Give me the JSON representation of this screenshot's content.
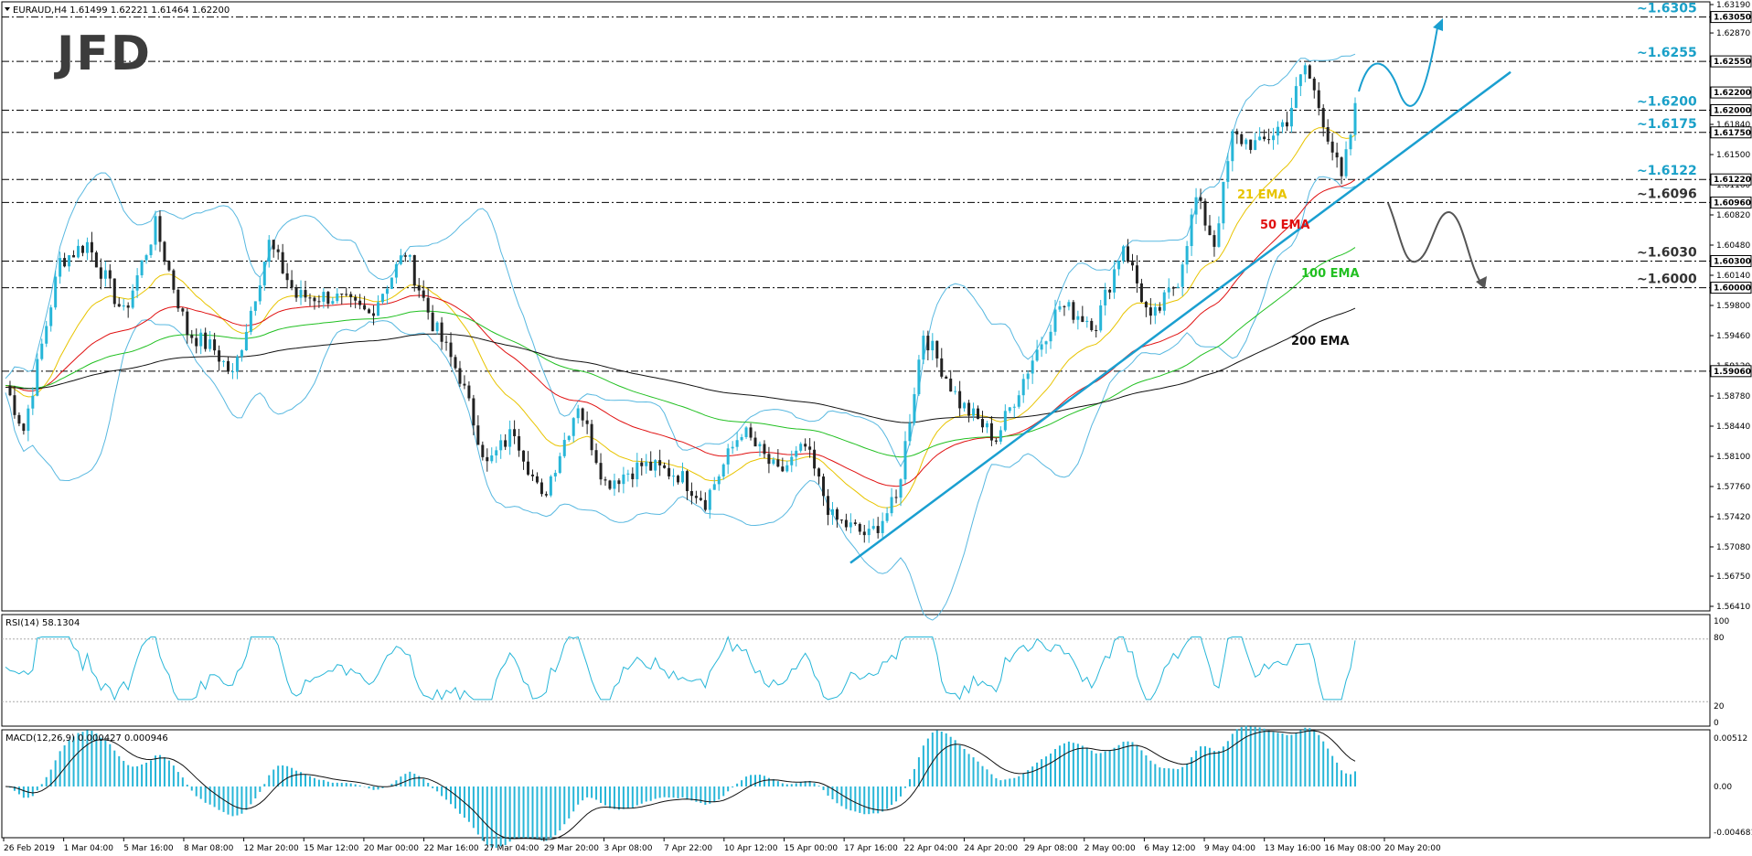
{
  "header": {
    "symbol_label": "EURAUD,H4  1.61499 1.62221 1.61464 1.62200",
    "logo_text": "JFD"
  },
  "price_axis_ticks": [
    "1.63190",
    "1.62870",
    "1.62550",
    "1.62200",
    "1.61840",
    "1.61500",
    "1.61160",
    "1.60820",
    "1.60480",
    "1.60140",
    "1.59800",
    "1.59460",
    "1.59120",
    "1.58780",
    "1.58440",
    "1.58100",
    "1.57760",
    "1.57420",
    "1.57080",
    "1.56750",
    "1.56410"
  ],
  "price_axis_ticks_values": [
    1.6319,
    1.6287,
    1.6255,
    1.622,
    1.6184,
    1.615,
    1.6116,
    1.6082,
    1.6048,
    1.6014,
    1.598,
    1.5946,
    1.5912,
    1.5878,
    1.5844,
    1.581,
    1.5776,
    1.5742,
    1.5708,
    1.5675,
    1.5641
  ],
  "horizontal_levels": [
    {
      "value": 1.6305,
      "box": "1.63050",
      "label": "~1.6305",
      "color": "#1aa0c8"
    },
    {
      "value": 1.6255,
      "box": "1.62550",
      "label": "~1.6255",
      "color": "#1aa0c8"
    },
    {
      "value": 1.62,
      "box": "1.62000",
      "label": "~1.6200",
      "color": "#1aa0c8"
    },
    {
      "value": 1.6175,
      "box": "1.61750",
      "label": "~1.6175",
      "color": "#1aa0c8"
    },
    {
      "value": 1.6122,
      "box": "1.61220",
      "label": "~1.6122",
      "color": "#1aa0c8"
    },
    {
      "value": 1.6096,
      "box": "1.60960",
      "label": "~1.6096",
      "color": "#333333"
    },
    {
      "value": 1.603,
      "box": "1.60300",
      "label": "~1.6030",
      "color": "#333333"
    },
    {
      "value": 1.6,
      "box": "1.60000",
      "label": "~1.6000",
      "color": "#333333"
    },
    {
      "value": 1.5906,
      "box": "1.59060",
      "label": "",
      "color": "#333333"
    }
  ],
  "current_price_box": "1.62200",
  "ema_labels": [
    {
      "text": "21 EMA",
      "color": "#e8c400"
    },
    {
      "text": "50 EMA",
      "color": "#e01010"
    },
    {
      "text": "100 EMA",
      "color": "#22c022"
    },
    {
      "text": "200 EMA",
      "color": "#111111"
    }
  ],
  "x_axis_labels": [
    "26 Feb 2019",
    "1 Mar 04:00",
    "5 Mar 16:00",
    "8 Mar 08:00",
    "12 Mar 20:00",
    "15 Mar 12:00",
    "20 Mar 00:00",
    "22 Mar 16:00",
    "27 Mar 04:00",
    "29 Mar 20:00",
    "3 Apr 08:00",
    "7 Apr 22:00",
    "10 Apr 12:00",
    "15 Apr 00:00",
    "17 Apr 16:00",
    "22 Apr 04:00",
    "24 Apr 20:00",
    "29 Apr 08:00",
    "2 May 00:00",
    "6 May 12:00",
    "9 May 04:00",
    "13 May 16:00",
    "16 May 08:00",
    "20 May 20:00"
  ],
  "rsi": {
    "label": "RSI(14) 58.1304",
    "levels": [
      "100",
      "80",
      "20",
      "0"
    ]
  },
  "macd": {
    "label": "MACD(12,26,9) 0.000427 0.000946",
    "levels": [
      "0.00512",
      "0.00",
      "-0.004681"
    ]
  },
  "colors": {
    "bull": "#27b6d8",
    "bear": "#222222",
    "rsi": "#27b6d8",
    "macd_hist": "#27b6d8",
    "signal": "#111111",
    "trend": "#1a9fd0",
    "bands": "#58b8e0"
  },
  "chart_data": {
    "type": "line",
    "title": "EURAUD,H4",
    "series": [
      {
        "name": "EURAUD H4 (approx close)",
        "x": [
          "26 Feb 2019",
          "1 Mar 04:00",
          "5 Mar 16:00",
          "8 Mar 08:00",
          "12 Mar 20:00",
          "15 Mar 12:00",
          "20 Mar 00:00",
          "22 Mar 16:00",
          "27 Mar 04:00",
          "29 Mar 20:00",
          "3 Apr 08:00",
          "7 Apr 22:00",
          "10 Apr 12:00",
          "15 Apr 00:00",
          "17 Apr 16:00",
          "22 Apr 04:00",
          "24 Apr 20:00",
          "29 Apr 08:00",
          "2 May 00:00",
          "6 May 12:00",
          "9 May 04:00",
          "13 May 16:00",
          "16 May 08:00",
          "20 May 20:00"
        ],
        "values": [
          1.589,
          1.603,
          1.608,
          1.593,
          1.6,
          1.599,
          1.601,
          1.596,
          1.581,
          1.576,
          1.579,
          1.58,
          1.578,
          1.577,
          1.571,
          1.58,
          1.587,
          1.583,
          1.599,
          1.598,
          1.605,
          1.619,
          1.625,
          1.622
        ]
      },
      {
        "name": "21 EMA",
        "values": [
          1.59,
          1.599,
          1.603,
          1.598,
          1.599,
          1.5985,
          1.5995,
          1.596,
          1.586,
          1.58,
          1.579,
          1.579,
          1.579,
          1.578,
          1.574,
          1.579,
          1.586,
          1.582,
          1.594,
          1.598,
          1.603,
          1.615,
          1.621,
          1.617
        ]
      },
      {
        "name": "50 EMA",
        "values": [
          1.59,
          1.595,
          1.599,
          1.598,
          1.5975,
          1.5975,
          1.5985,
          1.597,
          1.59,
          1.585,
          1.582,
          1.581,
          1.58,
          1.579,
          1.577,
          1.579,
          1.582,
          1.582,
          1.589,
          1.594,
          1.599,
          1.607,
          1.613,
          1.613
        ]
      },
      {
        "name": "100 EMA",
        "values": [
          1.591,
          1.593,
          1.596,
          1.596,
          1.596,
          1.5965,
          1.597,
          1.5965,
          1.593,
          1.59,
          1.588,
          1.586,
          1.585,
          1.584,
          1.582,
          1.5815,
          1.582,
          1.582,
          1.586,
          1.59,
          1.594,
          1.599,
          1.604,
          1.606
        ]
      },
      {
        "name": "200 EMA",
        "values": [
          1.59,
          1.592,
          1.5935,
          1.594,
          1.5945,
          1.595,
          1.5955,
          1.5955,
          1.594,
          1.592,
          1.5905,
          1.589,
          1.5875,
          1.586,
          1.5845,
          1.583,
          1.583,
          1.583,
          1.585,
          1.588,
          1.591,
          1.594,
          1.597,
          1.599
        ]
      }
    ],
    "annotations": [
      "~1.6305",
      "~1.6255",
      "~1.6200",
      "~1.6175",
      "~1.6122",
      "~1.6096",
      "~1.6030",
      "~1.6000"
    ],
    "ylim": [
      1.5641,
      1.6319
    ],
    "grid": false
  }
}
